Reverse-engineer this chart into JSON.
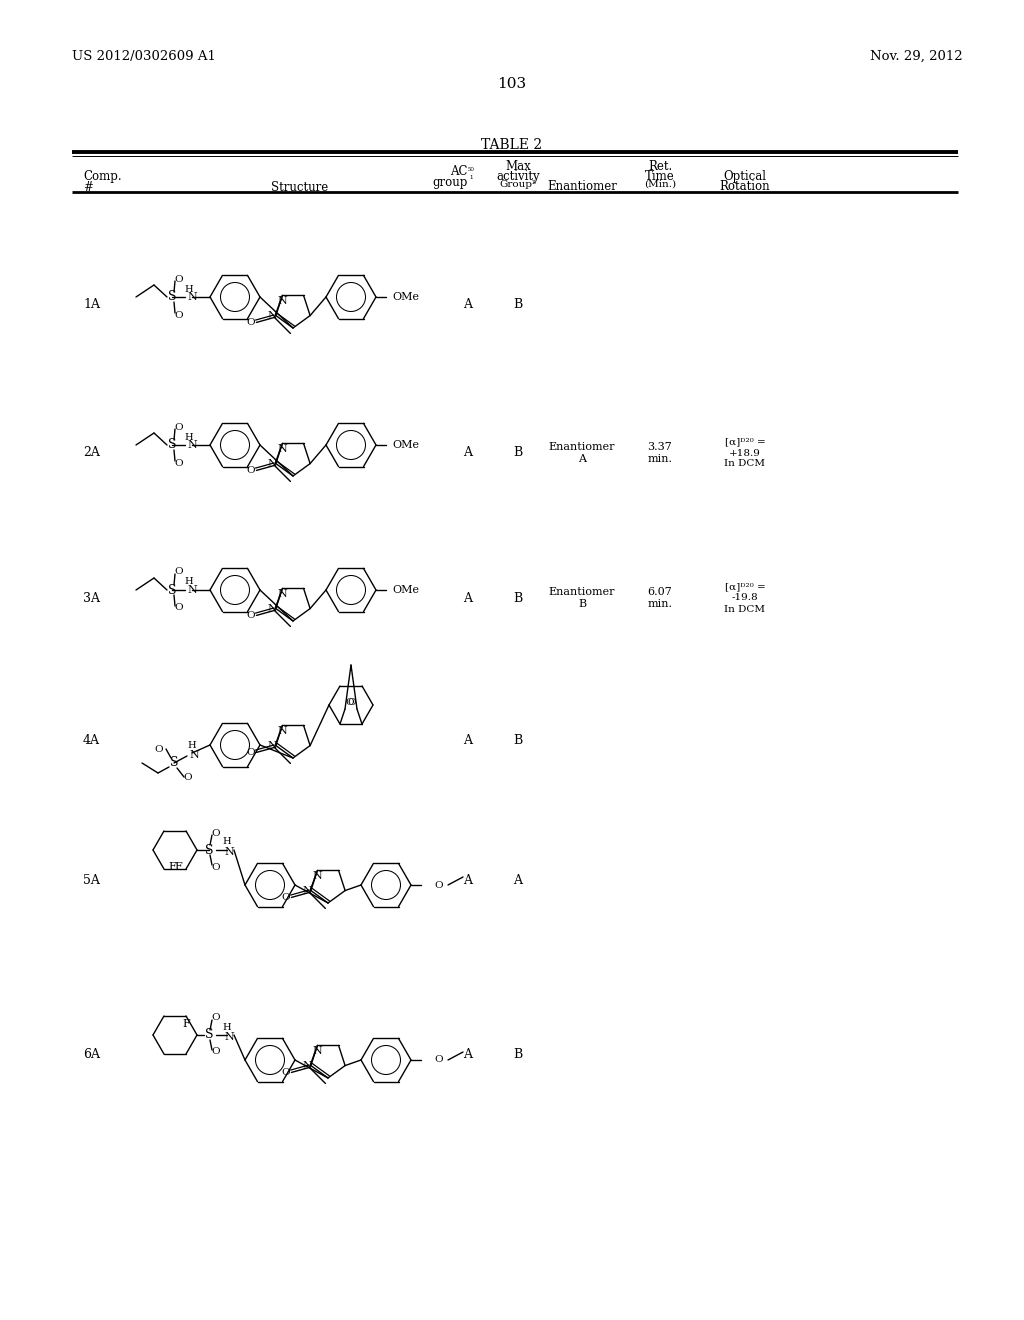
{
  "patent_number": "US 2012/0302609 A1",
  "date": "Nov. 29, 2012",
  "page_number": "103",
  "table_title": "TABLE 2",
  "rows": [
    {
      "comp": "1A",
      "ac50": "A",
      "max_activity": "B",
      "enantiomer": "",
      "ret_time": "",
      "optical_rotation": ""
    },
    {
      "comp": "2A",
      "ac50": "A",
      "max_activity": "B",
      "enantiomer": "Enantiomer\nA",
      "ret_time": "3.37\nmin.",
      "optical_rotation": "[α]ᴰ²⁰ =\n+18.9\nIn DCM"
    },
    {
      "comp": "3A",
      "ac50": "A",
      "max_activity": "B",
      "enantiomer": "Enantiomer\nB",
      "ret_time": "6.07\nmin.",
      "optical_rotation": "[α]ᴰ²⁰ =\n-19.8\nIn DCM"
    },
    {
      "comp": "4A",
      "ac50": "A",
      "max_activity": "B",
      "enantiomer": "",
      "ret_time": "",
      "optical_rotation": ""
    },
    {
      "comp": "5A",
      "ac50": "A",
      "max_activity": "A",
      "enantiomer": "",
      "ret_time": "",
      "optical_rotation": ""
    },
    {
      "comp": "6A",
      "ac50": "A",
      "max_activity": "B",
      "enantiomer": "",
      "ret_time": "",
      "optical_rotation": ""
    }
  ],
  "row_centers_y": [
    305,
    453,
    598,
    740,
    880,
    1055
  ],
  "col_comp": 83,
  "col_ac50": 468,
  "col_maxact": 518,
  "col_enantiomer": 582,
  "col_ret": 660,
  "col_optical": 745
}
